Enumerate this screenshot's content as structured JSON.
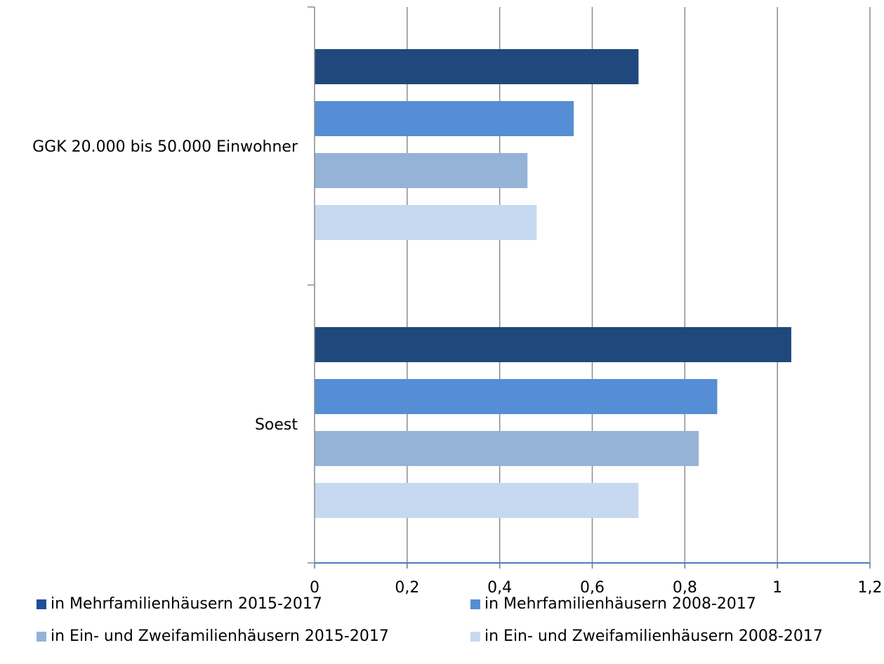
{
  "chart_data": {
    "type": "bar",
    "orientation": "horizontal",
    "categories": [
      "GGK 20.000 bis 50.000 Einwohner",
      "Soest"
    ],
    "series": [
      {
        "name": "in Mehrfamilienhäusern 2015-2017",
        "color": "#1f497d",
        "values": [
          0.7,
          1.03
        ]
      },
      {
        "name": "in Mehrfamilienhäusern 2008-2017",
        "color": "#558ed5",
        "values": [
          0.56,
          0.87
        ]
      },
      {
        "name": "in Ein- und Zweifamilienhäusern 2015-2017",
        "color": "#95b3d7",
        "values": [
          0.46,
          0.83
        ]
      },
      {
        "name": "in Ein- und Zweifamilienhäusern 2008-2017",
        "color": "#c6d9f1",
        "values": [
          0.48,
          0.7
        ]
      }
    ],
    "xlim": [
      0,
      1.2
    ],
    "x_ticks": [
      "0",
      "0,2",
      "0,4",
      "0,6",
      "0,8",
      "1",
      "1,2"
    ],
    "grid": true,
    "legend_position": "bottom",
    "legend_swatch_colors": [
      "#1f4e96",
      "#558ed5",
      "#95b3d7",
      "#c6d9f1"
    ]
  }
}
